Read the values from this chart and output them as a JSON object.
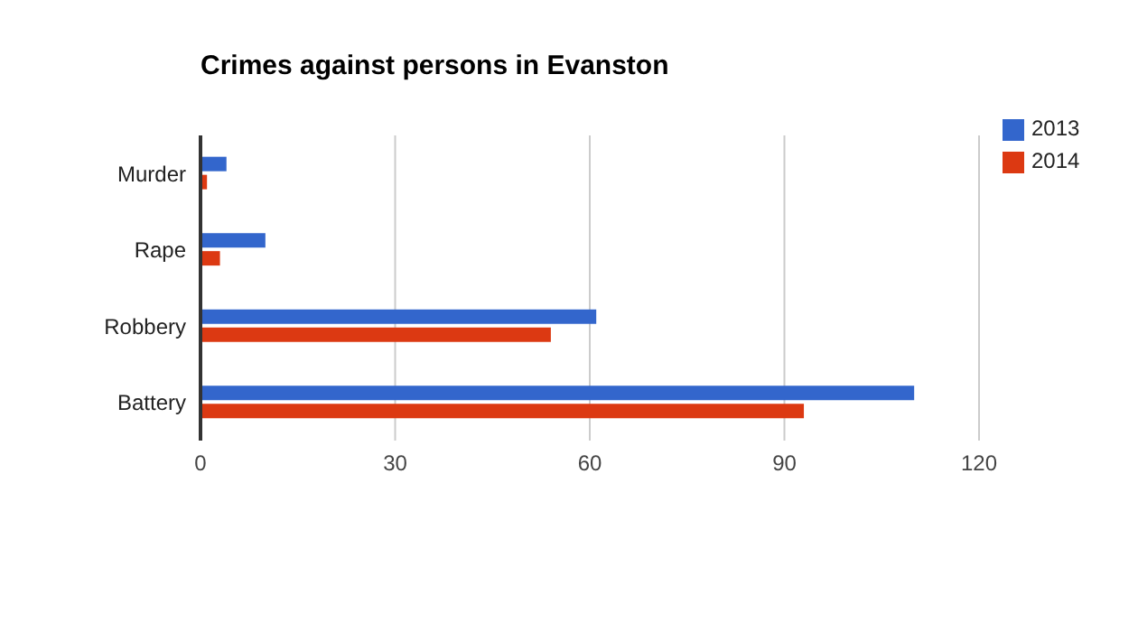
{
  "chart_data": {
    "type": "bar",
    "orientation": "horizontal",
    "title": "Crimes against persons in Evanston",
    "categories": [
      "Murder",
      "Rape",
      "Robbery",
      "Battery"
    ],
    "series": [
      {
        "name": "2013",
        "color": "#3366cc",
        "values": [
          4,
          10,
          61,
          110
        ]
      },
      {
        "name": "2014",
        "color": "#dc3912",
        "values": [
          1,
          3,
          54,
          93
        ]
      }
    ],
    "xlim": [
      0,
      120
    ],
    "xticks": [
      0,
      30,
      60,
      90,
      120
    ],
    "grid": "x",
    "legend": "top right"
  }
}
